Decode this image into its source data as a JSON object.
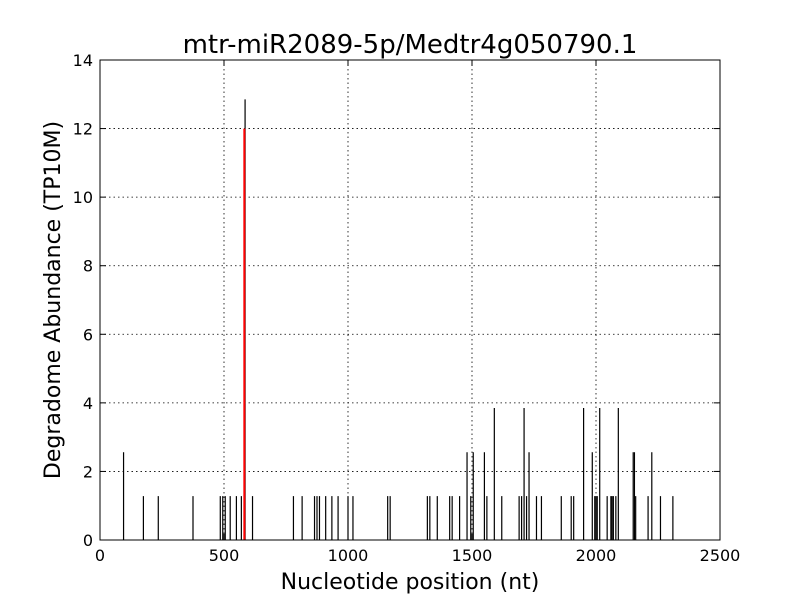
{
  "chart_data": {
    "type": "bar",
    "title": "mtr-miR2089-5p/Medtr4g050790.1",
    "xlabel": "Nucleotide position (nt)",
    "ylabel": "Degradome Abundance (TP10M)",
    "xlim": [
      0,
      2500
    ],
    "ylim": [
      0,
      14
    ],
    "xticks": [
      0,
      500,
      1000,
      1500,
      2000,
      2500
    ],
    "yticks": [
      0,
      2,
      4,
      6,
      8,
      10,
      12,
      14
    ],
    "grid": true,
    "series": [
      {
        "color": "#000000",
        "x": [
          95,
          175,
          235,
          375,
          485,
          495,
          505,
          525,
          550,
          570,
          585,
          615,
          780,
          815,
          865,
          875,
          885,
          910,
          935,
          960,
          1000,
          1020,
          1160,
          1170,
          1320,
          1330,
          1360,
          1410,
          1420,
          1450,
          1480,
          1495,
          1505,
          1550,
          1560,
          1590,
          1620,
          1690,
          1700,
          1710,
          1720,
          1730,
          1760,
          1780,
          1860,
          1900,
          1910,
          1950,
          1985,
          1995,
          2000,
          2005,
          2015,
          2045,
          2060,
          2065,
          2070,
          2080,
          2090,
          2150,
          2155,
          2160,
          2210,
          2225,
          2260,
          2310
        ],
        "values": [
          2.56,
          1.28,
          1.28,
          1.28,
          1.28,
          1.28,
          1.28,
          1.28,
          1.28,
          1.28,
          12.85,
          1.28,
          1.28,
          1.28,
          1.28,
          1.28,
          1.28,
          1.28,
          1.28,
          1.28,
          1.28,
          1.28,
          1.28,
          1.28,
          1.28,
          1.28,
          1.28,
          1.28,
          1.28,
          1.28,
          2.56,
          1.28,
          2.56,
          2.56,
          1.28,
          3.85,
          1.28,
          1.28,
          1.28,
          3.85,
          1.28,
          2.56,
          1.28,
          1.28,
          1.28,
          1.28,
          1.28,
          3.85,
          2.56,
          1.28,
          1.28,
          1.28,
          3.85,
          1.28,
          1.28,
          1.28,
          1.28,
          1.28,
          3.85,
          2.56,
          2.56,
          1.28,
          1.28,
          2.56,
          1.28,
          1.28
        ]
      },
      {
        "color": "#ff0000",
        "x": [
          582
        ],
        "values": [
          12.0
        ]
      }
    ]
  }
}
